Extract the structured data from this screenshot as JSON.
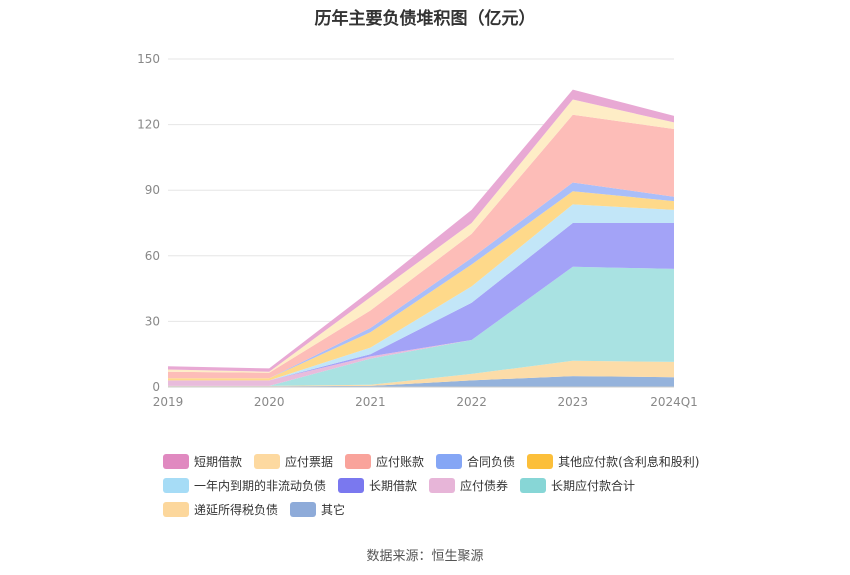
{
  "chart_data": {
    "type": "area",
    "stacked": true,
    "title": "历年主要负债堆积图（亿元）",
    "source": "数据来源：恒生聚源",
    "categories": [
      "2019",
      "2020",
      "2021",
      "2022",
      "2023",
      "2024Q1"
    ],
    "ylim": [
      0,
      150
    ],
    "yticks": [
      "0",
      "30",
      "60",
      "90",
      "120",
      "150"
    ],
    "grid": true,
    "legend_position": "bottom",
    "series": [
      {
        "name": "其它",
        "color": "#95b3dc",
        "values": [
          0.3,
          0.3,
          0.5,
          3.0,
          5.0,
          4.5
        ]
      },
      {
        "name": "递延所得税负债",
        "color": "#fcdca8",
        "values": [
          0.2,
          0.2,
          0.5,
          3.0,
          7.0,
          7.0
        ]
      },
      {
        "name": "长期应付款合计",
        "color": "#a9e2e2",
        "values": [
          0,
          0,
          12.0,
          15.5,
          43.0,
          42.5
        ]
      },
      {
        "name": "应付债券",
        "color": "#e8bcdc",
        "values": [
          2.5,
          2.5,
          1.0,
          0,
          0,
          0
        ]
      },
      {
        "name": "长期借款",
        "color": "#a3a3f7",
        "values": [
          0,
          0,
          1.0,
          17.0,
          20.0,
          21.0
        ]
      },
      {
        "name": "一年内到期的非流动负债",
        "color": "#c2e6f8",
        "values": [
          0,
          0,
          3.0,
          7.5,
          8.5,
          6.0
        ]
      },
      {
        "name": "其他应付款(含利息和股利)",
        "color": "#fed98a",
        "values": [
          1.0,
          1.0,
          7.0,
          10.0,
          6.0,
          4.0
        ]
      },
      {
        "name": "合同负债",
        "color": "#a9bef9",
        "values": [
          0,
          0,
          2.0,
          3.0,
          4.0,
          2.0
        ]
      },
      {
        "name": "应付账款",
        "color": "#fdbdb8",
        "values": [
          3.0,
          2.5,
          8.0,
          11.0,
          31.0,
          31.0
        ]
      },
      {
        "name": "应付票据",
        "color": "#feedc6",
        "values": [
          1.0,
          0.5,
          6.0,
          5.0,
          7.0,
          3.0
        ]
      },
      {
        "name": "短期借款",
        "color": "#e8a9d4",
        "values": [
          1.5,
          1.5,
          3.0,
          6.0,
          4.5,
          3.0
        ]
      }
    ],
    "legend": [
      {
        "name": "短期借款",
        "color": "#e089c0"
      },
      {
        "name": "应付票据",
        "color": "#fdd9a0"
      },
      {
        "name": "应付账款",
        "color": "#f9a39b"
      },
      {
        "name": "合同负债",
        "color": "#85a6f5"
      },
      {
        "name": "其他应付款(含利息和股利)",
        "color": "#fcbf3a"
      },
      {
        "name": "一年内到期的非流动负债",
        "color": "#a6dcf6"
      },
      {
        "name": "长期借款",
        "color": "#7a78ef"
      },
      {
        "name": "应付债券",
        "color": "#e7b5d8"
      },
      {
        "name": "长期应付款合计",
        "color": "#87d6d6"
      },
      {
        "name": "递延所得税负债",
        "color": "#fcd79c"
      },
      {
        "name": "其它",
        "color": "#8eabd9"
      }
    ]
  }
}
